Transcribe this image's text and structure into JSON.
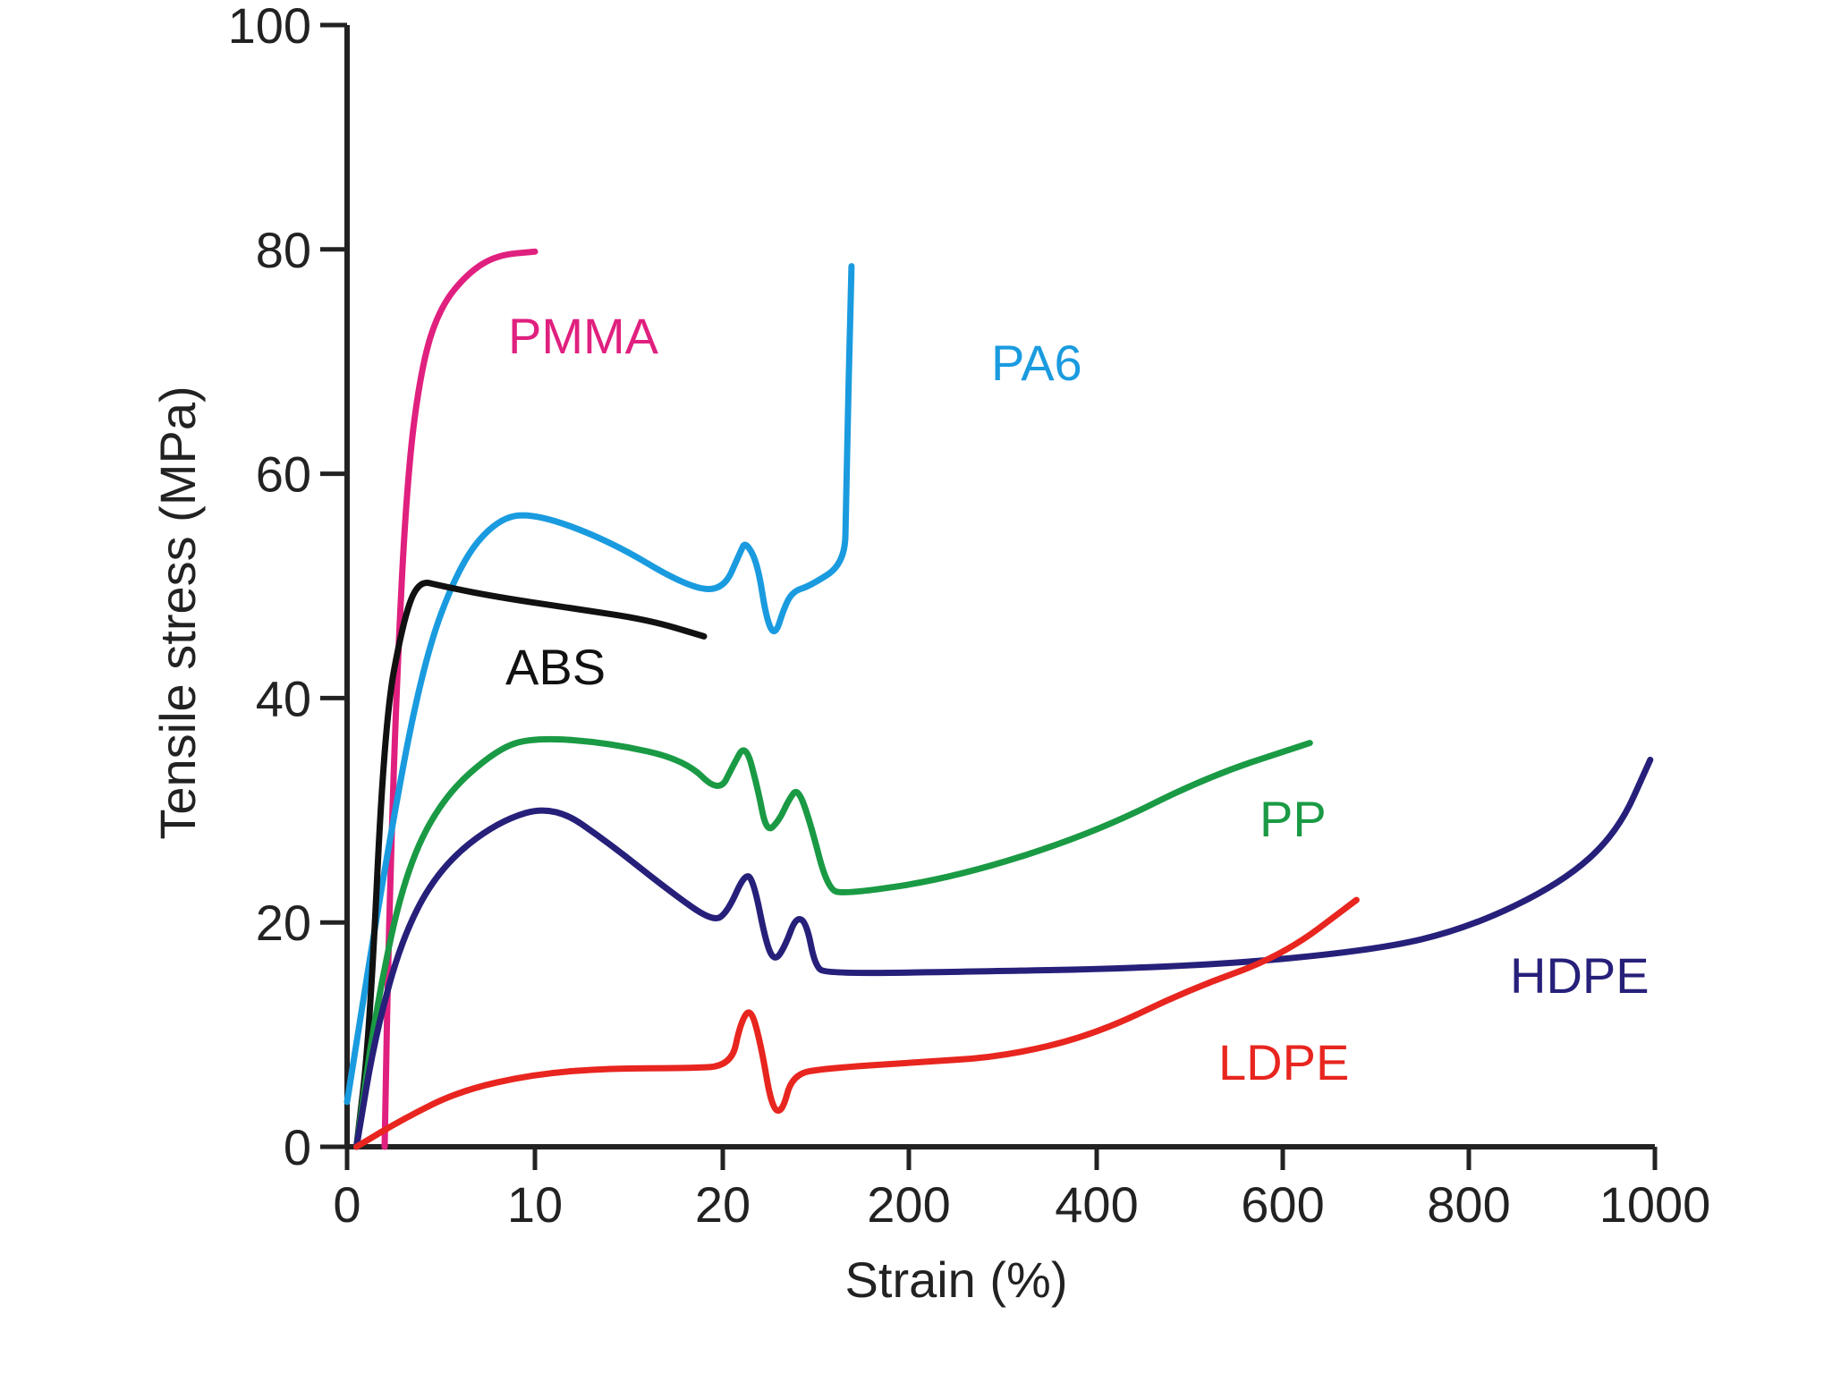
{
  "chart_data": {
    "type": "line",
    "title": "",
    "xlabel": "Strain (%)",
    "ylabel": "Tensile stress (MPa)",
    "ylim": [
      0,
      100
    ],
    "x_scale": "piecewise: linear 0–20 %, break near 20 %, then linear 200–1000 %",
    "x_ticks": [
      "0",
      "10",
      "20",
      "200",
      "400",
      "600",
      "800",
      "1000"
    ],
    "y_ticks": [
      "0",
      "20",
      "40",
      "60",
      "80",
      "100"
    ],
    "grid": false,
    "legend": "none (series labelled directly on the plot)",
    "series": [
      {
        "name": "PMMA",
        "color": "#e0207f",
        "points": [
          [
            2,
            0
          ],
          [
            2.2,
            18
          ],
          [
            2.6,
            40
          ],
          [
            3.2,
            60
          ],
          [
            4,
            70
          ],
          [
            5,
            75
          ],
          [
            6.5,
            78
          ],
          [
            8,
            79.5
          ],
          [
            10,
            79.8
          ]
        ]
      },
      {
        "name": "PA6",
        "color": "#1a9bdf",
        "points": [
          [
            0,
            4
          ],
          [
            2,
            25
          ],
          [
            4,
            43
          ],
          [
            6,
            52
          ],
          [
            8,
            56
          ],
          [
            10,
            56.5
          ],
          [
            14,
            54
          ],
          [
            18,
            50
          ],
          [
            20,
            49.5
          ],
          [
            21,
            53
          ],
          [
            21.3,
            54
          ],
          [
            22,
            52
          ],
          [
            22.5,
            47
          ],
          [
            23,
            45.5
          ],
          [
            23.5,
            48
          ],
          [
            24,
            49.5
          ],
          [
            25,
            50
          ],
          [
            27,
            52
          ],
          [
            30,
            57
          ],
          [
            35,
            65
          ],
          [
            40,
            72
          ],
          [
            45,
            78.5
          ]
        ]
      },
      {
        "name": "ABS",
        "color": "#111111",
        "points": [
          [
            0.5,
            0
          ],
          [
            1.2,
            10
          ],
          [
            2,
            38
          ],
          [
            3,
            47
          ],
          [
            3.8,
            50.5
          ],
          [
            5,
            50
          ],
          [
            8,
            49
          ],
          [
            12,
            48
          ],
          [
            16,
            47
          ],
          [
            19,
            45.5
          ]
        ]
      },
      {
        "name": "PP",
        "color": "#1a9a44",
        "points": [
          [
            0.5,
            0
          ],
          [
            1.5,
            12
          ],
          [
            3,
            24
          ],
          [
            5,
            31
          ],
          [
            8,
            35.5
          ],
          [
            10,
            36.5
          ],
          [
            14,
            36
          ],
          [
            18,
            34.5
          ],
          [
            19.8,
            31.5
          ],
          [
            20.6,
            34
          ],
          [
            21.3,
            36
          ],
          [
            22,
            32
          ],
          [
            22.5,
            28
          ],
          [
            23.2,
            29
          ],
          [
            23.8,
            31
          ],
          [
            24.3,
            32
          ],
          [
            25,
            29
          ],
          [
            26,
            23
          ],
          [
            27,
            22.5
          ],
          [
            250,
            24
          ],
          [
            400,
            28
          ],
          [
            520,
            33
          ],
          [
            630,
            36
          ]
        ]
      },
      {
        "name": "HDPE",
        "color": "#26207a",
        "points": [
          [
            0.5,
            0
          ],
          [
            1.5,
            10
          ],
          [
            3,
            19
          ],
          [
            5,
            25
          ],
          [
            8,
            29
          ],
          [
            11,
            30.5
          ],
          [
            14,
            27
          ],
          [
            17,
            23
          ],
          [
            19.5,
            20
          ],
          [
            20.3,
            21
          ],
          [
            21.3,
            24.5
          ],
          [
            21.8,
            23.5
          ],
          [
            22.5,
            18
          ],
          [
            23,
            16.5
          ],
          [
            23.6,
            18
          ],
          [
            24.2,
            20.5
          ],
          [
            24.8,
            20
          ],
          [
            25.3,
            16
          ],
          [
            26,
            15.5
          ],
          [
            200,
            15.5
          ],
          [
            500,
            16
          ],
          [
            700,
            17.5
          ],
          [
            800,
            19.5
          ],
          [
            900,
            23.5
          ],
          [
            960,
            28
          ],
          [
            995,
            34.5
          ]
        ]
      },
      {
        "name": "LDPE",
        "color": "#e8251f",
        "points": [
          [
            0.5,
            0
          ],
          [
            3,
            2.5
          ],
          [
            6,
            5
          ],
          [
            10,
            6.5
          ],
          [
            14,
            7
          ],
          [
            18,
            7
          ],
          [
            20.5,
            7.2
          ],
          [
            21,
            11
          ],
          [
            21.6,
            12.5
          ],
          [
            22.2,
            9
          ],
          [
            22.8,
            3.5
          ],
          [
            23.4,
            3
          ],
          [
            24,
            6.5
          ],
          [
            26,
            7
          ],
          [
            200,
            7.5
          ],
          [
            300,
            8
          ],
          [
            400,
            10
          ],
          [
            500,
            14
          ],
          [
            600,
            17
          ],
          [
            680,
            22
          ]
        ]
      }
    ]
  }
}
